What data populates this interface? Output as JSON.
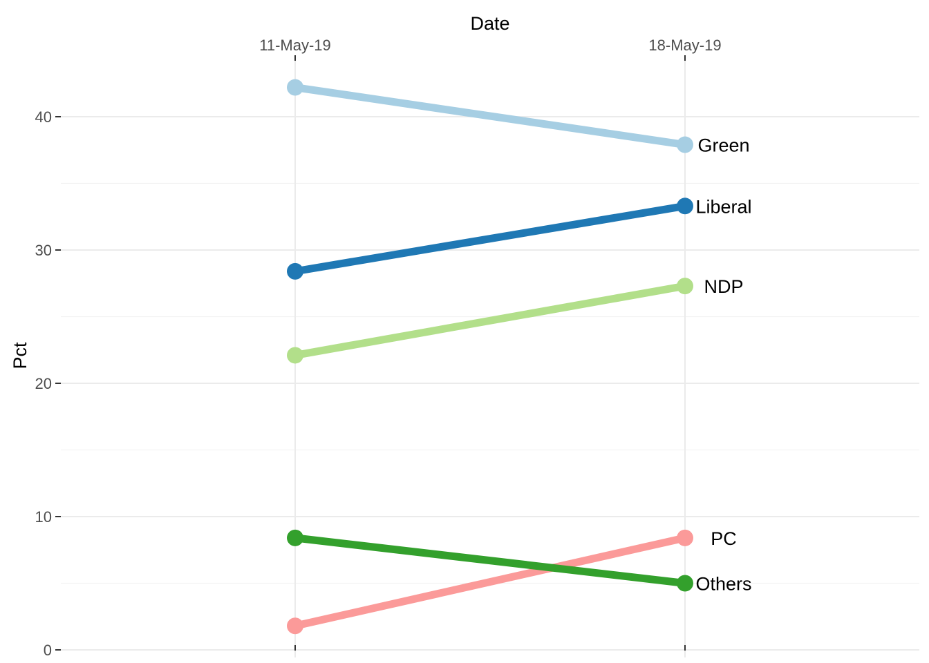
{
  "chart_data": {
    "type": "line",
    "title": "",
    "xlabel": "Date",
    "ylabel": "Pct",
    "x_position": "top",
    "x": [
      "11-May-19",
      "18-May-19"
    ],
    "ylim": [
      0,
      44
    ],
    "yticks": [
      0,
      10,
      20,
      30,
      40
    ],
    "grid": true,
    "legend": "none",
    "series": [
      {
        "name": "Green",
        "values": [
          42.2,
          37.9
        ],
        "color": "#a6cee3"
      },
      {
        "name": "Liberal",
        "values": [
          28.4,
          33.3
        ],
        "color": "#1f78b4"
      },
      {
        "name": "NDP",
        "values": [
          22.1,
          27.3
        ],
        "color": "#b2df8a"
      },
      {
        "name": "PC",
        "values": [
          1.8,
          8.4
        ],
        "color": "#fb9a99"
      },
      {
        "name": "Others",
        "values": [
          8.4,
          5.0
        ],
        "color": "#33a02c"
      }
    ]
  }
}
